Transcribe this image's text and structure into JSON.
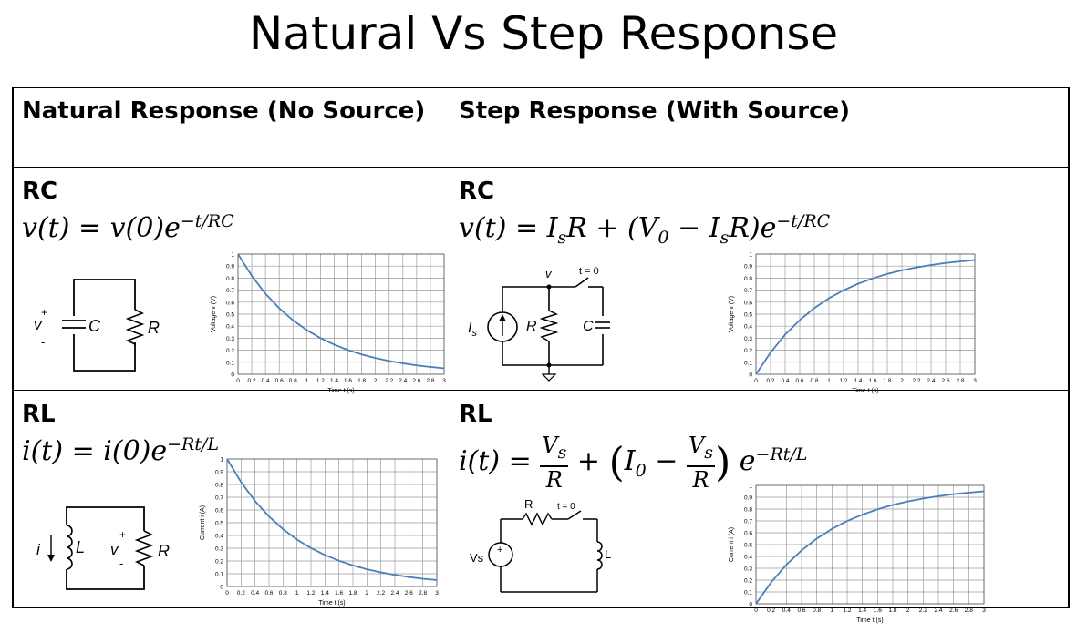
{
  "title": "Natural Vs Step Response",
  "headers": {
    "natural": "Natural Response (No Source)",
    "step": "Step Response (With Source)"
  },
  "rc_natural": {
    "label": "RC",
    "equation": "v(t) = v(0)e^(−t/RC)",
    "circuit": {
      "v_label": "v",
      "plus": "+",
      "minus": "-",
      "c_label": "C",
      "r_label": "R"
    }
  },
  "rc_step": {
    "label": "RC",
    "equation": "v(t) = I_sR + (V_0 − I_sR)e^(−t/RC)",
    "circuit": {
      "v_label": "v",
      "switch_label": "t = 0",
      "is_label": "I",
      "is_sub": "s",
      "r_label": "R",
      "c_label": "C"
    }
  },
  "rl_natural": {
    "label": "RL",
    "equation": "i(t) = i(0)e^(−Rt/L)",
    "circuit": {
      "i_label": "i",
      "l_label": "L",
      "v_label": "v",
      "plus": "+",
      "minus": "-",
      "r_label": "R"
    }
  },
  "rl_step": {
    "label": "RL",
    "equation": "i(t) = V_s/R + (I_0 − V_s/R) e^(−Rt/L)",
    "circuit": {
      "r_label": "R",
      "switch_label": "t = 0",
      "vs_label": "Vs",
      "plus": "+",
      "l_label": "L"
    }
  },
  "chart_data": [
    {
      "type": "line",
      "name": "rc-natural",
      "xlabel": "Time t (s)",
      "ylabel": "Voltage v (V)",
      "xlim": [
        0,
        3
      ],
      "ylim": [
        0,
        1
      ],
      "x_ticks": [
        "0",
        "0.2",
        "0.4",
        "0.6",
        "0.8",
        "1",
        "1.2",
        "1.4",
        "1.6",
        "1.8",
        "2",
        "2.2",
        "2.4",
        "2.6",
        "2.8",
        "3"
      ],
      "y_ticks": [
        "0",
        "0.1",
        "0.2",
        "0.3",
        "0.4",
        "0.5",
        "0.6",
        "0.7",
        "0.8",
        "0.9",
        "1"
      ],
      "x": [
        0,
        0.2,
        0.4,
        0.6,
        0.8,
        1.0,
        1.2,
        1.4,
        1.6,
        1.8,
        2.0,
        2.2,
        2.4,
        2.6,
        2.8,
        3.0
      ],
      "y": [
        1.0,
        0.819,
        0.67,
        0.549,
        0.449,
        0.368,
        0.301,
        0.247,
        0.202,
        0.165,
        0.135,
        0.111,
        0.091,
        0.074,
        0.061,
        0.05
      ],
      "grid": true
    },
    {
      "type": "line",
      "name": "rc-step",
      "xlabel": "Time t (s)",
      "ylabel": "Voltage v (V)",
      "xlim": [
        0,
        3
      ],
      "ylim": [
        0,
        1
      ],
      "x_ticks": [
        "0",
        "0.2",
        "0.4",
        "0.6",
        "0.8",
        "1",
        "1.2",
        "1.4",
        "1.6",
        "1.8",
        "2",
        "2.2",
        "2.4",
        "2.6",
        "2.8",
        "3"
      ],
      "y_ticks": [
        "0",
        "0.1",
        "0.2",
        "0.3",
        "0.4",
        "0.5",
        "0.6",
        "0.7",
        "0.8",
        "0.9",
        "1"
      ],
      "x": [
        0,
        0.2,
        0.4,
        0.6,
        0.8,
        1.0,
        1.2,
        1.4,
        1.6,
        1.8,
        2.0,
        2.2,
        2.4,
        2.6,
        2.8,
        3.0
      ],
      "y": [
        0.0,
        0.181,
        0.33,
        0.451,
        0.551,
        0.632,
        0.699,
        0.753,
        0.798,
        0.835,
        0.865,
        0.889,
        0.909,
        0.926,
        0.939,
        0.95
      ],
      "grid": true
    },
    {
      "type": "line",
      "name": "rl-natural",
      "xlabel": "Time t (s)",
      "ylabel": "Current i (A)",
      "xlim": [
        0,
        3
      ],
      "ylim": [
        0,
        1
      ],
      "x_ticks": [
        "0",
        "0.2",
        "0.4",
        "0.6",
        "0.8",
        "1",
        "1.2",
        "1.4",
        "1.6",
        "1.8",
        "2",
        "2.2",
        "2.4",
        "2.6",
        "2.8",
        "3"
      ],
      "y_ticks": [
        "0",
        "0.1",
        "0.2",
        "0.3",
        "0.4",
        "0.5",
        "0.6",
        "0.7",
        "0.8",
        "0.9",
        "1"
      ],
      "x": [
        0,
        0.2,
        0.4,
        0.6,
        0.8,
        1.0,
        1.2,
        1.4,
        1.6,
        1.8,
        2.0,
        2.2,
        2.4,
        2.6,
        2.8,
        3.0
      ],
      "y": [
        1.0,
        0.819,
        0.67,
        0.549,
        0.449,
        0.368,
        0.301,
        0.247,
        0.202,
        0.165,
        0.135,
        0.111,
        0.091,
        0.074,
        0.061,
        0.05
      ],
      "grid": true
    },
    {
      "type": "line",
      "name": "rl-step",
      "xlabel": "Time t (s)",
      "ylabel": "Current i (A)",
      "xlim": [
        0,
        3
      ],
      "ylim": [
        0,
        1
      ],
      "x_ticks": [
        "0",
        "0.2",
        "0.4",
        "0.6",
        "0.8",
        "1",
        "1.2",
        "1.4",
        "1.6",
        "1.8",
        "2",
        "2.2",
        "2.4",
        "2.6",
        "2.8",
        "3"
      ],
      "y_ticks": [
        "0",
        "0.1",
        "0.2",
        "0.3",
        "0.4",
        "0.5",
        "0.6",
        "0.7",
        "0.8",
        "0.9",
        "1"
      ],
      "x": [
        0,
        0.2,
        0.4,
        0.6,
        0.8,
        1.0,
        1.2,
        1.4,
        1.6,
        1.8,
        2.0,
        2.2,
        2.4,
        2.6,
        2.8,
        3.0
      ],
      "y": [
        0.0,
        0.181,
        0.33,
        0.451,
        0.551,
        0.632,
        0.699,
        0.753,
        0.798,
        0.835,
        0.865,
        0.889,
        0.909,
        0.926,
        0.939,
        0.95
      ],
      "grid": true
    }
  ],
  "colors": {
    "curve": "#4a7ebb",
    "grid": "#9a9a9a",
    "text": "#000000"
  }
}
